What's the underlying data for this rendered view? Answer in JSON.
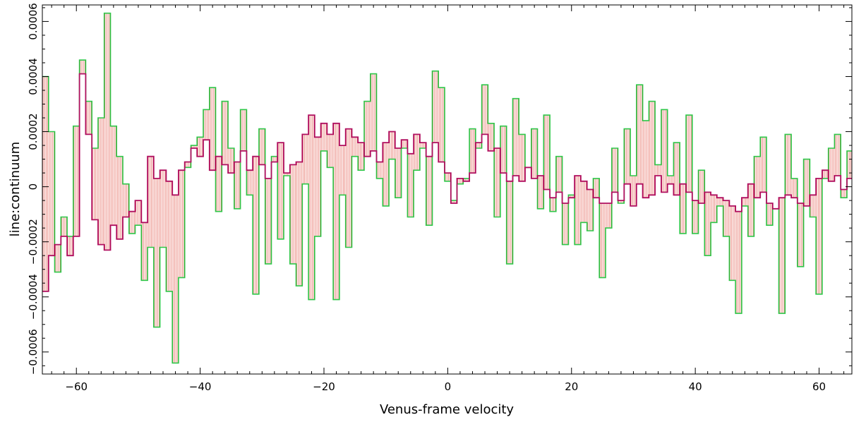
{
  "chart_data": {
    "type": "line",
    "step": true,
    "xlabel": "Venus-frame velocity",
    "ylabel": "line:continuum",
    "xlim": [
      -65.5,
      65.3
    ],
    "ylim": [
      -0.00068,
      0.00066
    ],
    "xticks": [
      -60,
      -40,
      -20,
      0,
      20,
      40,
      60
    ],
    "xtick_labels": [
      "−60",
      "−40",
      "−20",
      "0",
      "20",
      "40",
      "60"
    ],
    "yticks": [
      -0.0006,
      -0.0004,
      -0.0002,
      0,
      0.0002,
      0.0004,
      0.0006
    ],
    "ytick_labels": [
      "−0.0006",
      "−0.0004",
      "−0.0002",
      "0",
      "0.0002",
      "0.0004",
      "0.0006"
    ],
    "difference_fill_color": "#e8796f",
    "series": [
      {
        "color": "#2fc84a",
        "x": [
          -65,
          -64,
          -63,
          -62,
          -61,
          -60,
          -59,
          -58,
          -57,
          -56,
          -55,
          -54,
          -53,
          -52,
          -51,
          -50,
          -49,
          -48,
          -47,
          -46,
          -45,
          -44,
          -43,
          -42,
          -41,
          -40,
          -39,
          -38,
          -37,
          -36,
          -35,
          -34,
          -33,
          -32,
          -31,
          -30,
          -29,
          -28,
          -27,
          -26,
          -25,
          -24,
          -23,
          -22,
          -21,
          -20,
          -19,
          -18,
          -17,
          -16,
          -15,
          -14,
          -13,
          -12,
          -11,
          -10,
          -9,
          -8,
          -7,
          -6,
          -5,
          -4,
          -3,
          -2,
          -1,
          0,
          1,
          2,
          3,
          4,
          5,
          6,
          7,
          8,
          9,
          10,
          11,
          12,
          13,
          14,
          15,
          16,
          17,
          18,
          19,
          20,
          21,
          22,
          23,
          24,
          25,
          26,
          27,
          28,
          29,
          30,
          31,
          32,
          33,
          34,
          35,
          36,
          37,
          38,
          39,
          40,
          41,
          42,
          43,
          44,
          45,
          46,
          47,
          48,
          49,
          50,
          51,
          52,
          53,
          54,
          55,
          56,
          57,
          58,
          59,
          60,
          61,
          62,
          63,
          64,
          65
        ],
        "y": [
          0.0004,
          0.0002,
          -0.00031,
          -0.00011,
          -0.00018,
          0.00022,
          0.00046,
          0.00031,
          0.00014,
          0.00025,
          0.00063,
          0.00022,
          0.00011,
          1e-05,
          -0.00017,
          -0.00014,
          -0.00034,
          -0.00022,
          -0.00051,
          -0.00022,
          -0.00038,
          -0.00064,
          -0.00033,
          7e-05,
          0.00015,
          0.00018,
          0.00028,
          0.00036,
          -9e-05,
          0.00031,
          0.00014,
          -8e-05,
          0.00028,
          -3e-05,
          -0.00039,
          0.00021,
          -0.00028,
          0.00011,
          -0.00019,
          4e-05,
          -0.00028,
          -0.00036,
          1e-05,
          -0.00041,
          -0.00018,
          0.00013,
          7e-05,
          -0.00041,
          -3e-05,
          -0.00022,
          0.00011,
          6e-05,
          0.00031,
          0.00041,
          3e-05,
          -7e-05,
          0.0001,
          -4e-05,
          0.00014,
          -0.00011,
          6e-05,
          0.00014,
          -0.00014,
          0.00042,
          0.00036,
          2e-05,
          -5e-05,
          1e-05,
          3e-05,
          0.00021,
          0.00014,
          0.00037,
          0.00023,
          -0.00011,
          0.00022,
          -0.00028,
          0.00032,
          0.00019,
          7e-05,
          0.00021,
          -8e-05,
          0.00026,
          -9e-05,
          0.00011,
          -0.00021,
          -3e-05,
          -0.00021,
          -0.00013,
          -0.00016,
          3e-05,
          -0.00033,
          -0.00015,
          0.00014,
          -6e-05,
          0.00021,
          4e-05,
          0.00037,
          0.00024,
          0.00031,
          8e-05,
          0.00028,
          4e-05,
          0.00016,
          -0.00017,
          0.00026,
          -0.00017,
          6e-05,
          -0.00025,
          -0.00013,
          -7e-05,
          -0.00018,
          -0.00034,
          -0.00046,
          -7e-05,
          -0.00018,
          0.00011,
          0.00018,
          -0.00014,
          -8e-05,
          -0.00046,
          0.00019,
          3e-05,
          -0.00029,
          0.0001,
          -0.00011,
          -0.00039,
          3e-05,
          0.00014,
          0.00019,
          -4e-05,
          0.00013
        ]
      },
      {
        "color": "#b01060",
        "x": [
          -65,
          -64,
          -63,
          -62,
          -61,
          -60,
          -59,
          -58,
          -57,
          -56,
          -55,
          -54,
          -53,
          -52,
          -51,
          -50,
          -49,
          -48,
          -47,
          -46,
          -45,
          -44,
          -43,
          -42,
          -41,
          -40,
          -39,
          -38,
          -37,
          -36,
          -35,
          -34,
          -33,
          -32,
          -31,
          -30,
          -29,
          -28,
          -27,
          -26,
          -25,
          -24,
          -23,
          -22,
          -21,
          -20,
          -19,
          -18,
          -17,
          -16,
          -15,
          -14,
          -13,
          -12,
          -11,
          -10,
          -9,
          -8,
          -7,
          -6,
          -5,
          -4,
          -3,
          -2,
          -1,
          0,
          1,
          2,
          3,
          4,
          5,
          6,
          7,
          8,
          9,
          10,
          11,
          12,
          13,
          14,
          15,
          16,
          17,
          18,
          19,
          20,
          21,
          22,
          23,
          24,
          25,
          26,
          27,
          28,
          29,
          30,
          31,
          32,
          33,
          34,
          35,
          36,
          37,
          38,
          39,
          40,
          41,
          42,
          43,
          44,
          45,
          46,
          47,
          48,
          49,
          50,
          51,
          52,
          53,
          54,
          55,
          56,
          57,
          58,
          59,
          60,
          61,
          62,
          63,
          64,
          65
        ],
        "y": [
          -0.00038,
          -0.00025,
          -0.00021,
          -0.00018,
          -0.00025,
          -0.00018,
          0.00041,
          0.00019,
          -0.00012,
          -0.00021,
          -0.00023,
          -0.00014,
          -0.00019,
          -0.00011,
          -9e-05,
          -5e-05,
          -0.00013,
          0.00011,
          3e-05,
          6e-05,
          2e-05,
          -3e-05,
          6e-05,
          9e-05,
          0.00014,
          0.00011,
          0.00017,
          6e-05,
          0.00011,
          8e-05,
          5e-05,
          9e-05,
          0.00013,
          6e-05,
          0.00011,
          8e-05,
          3e-05,
          9e-05,
          0.00016,
          5e-05,
          8e-05,
          9e-05,
          0.00019,
          0.00026,
          0.00018,
          0.00023,
          0.00019,
          0.00023,
          0.00015,
          0.00021,
          0.00018,
          0.00016,
          0.00011,
          0.00013,
          9e-05,
          0.00016,
          0.0002,
          0.00014,
          0.00017,
          0.00012,
          0.00019,
          0.00016,
          0.00011,
          0.00016,
          9e-05,
          5e-05,
          -6e-05,
          3e-05,
          2e-05,
          5e-05,
          0.00016,
          0.00019,
          0.00013,
          0.00014,
          5e-05,
          2e-05,
          4e-05,
          2e-05,
          7e-05,
          3e-05,
          4e-05,
          -1e-05,
          -4e-05,
          -2e-05,
          -6e-05,
          -4e-05,
          4e-05,
          2e-05,
          -1e-05,
          -4e-05,
          -6e-05,
          -6e-05,
          -2e-05,
          -5e-05,
          1e-05,
          -7e-05,
          1e-05,
          -4e-05,
          -3e-05,
          4e-05,
          -2e-05,
          1e-05,
          -3e-05,
          1e-05,
          -2e-05,
          -5e-05,
          -6e-05,
          -2e-05,
          -3e-05,
          -4e-05,
          -5e-05,
          -7e-05,
          -9e-05,
          -4e-05,
          1e-05,
          -4e-05,
          -2e-05,
          -6e-05,
          -8e-05,
          -4e-05,
          -3e-05,
          -4e-05,
          -6e-05,
          -7e-05,
          -3e-05,
          3e-05,
          6e-05,
          2e-05,
          4e-05,
          -1e-05,
          3e-05
        ]
      }
    ]
  }
}
